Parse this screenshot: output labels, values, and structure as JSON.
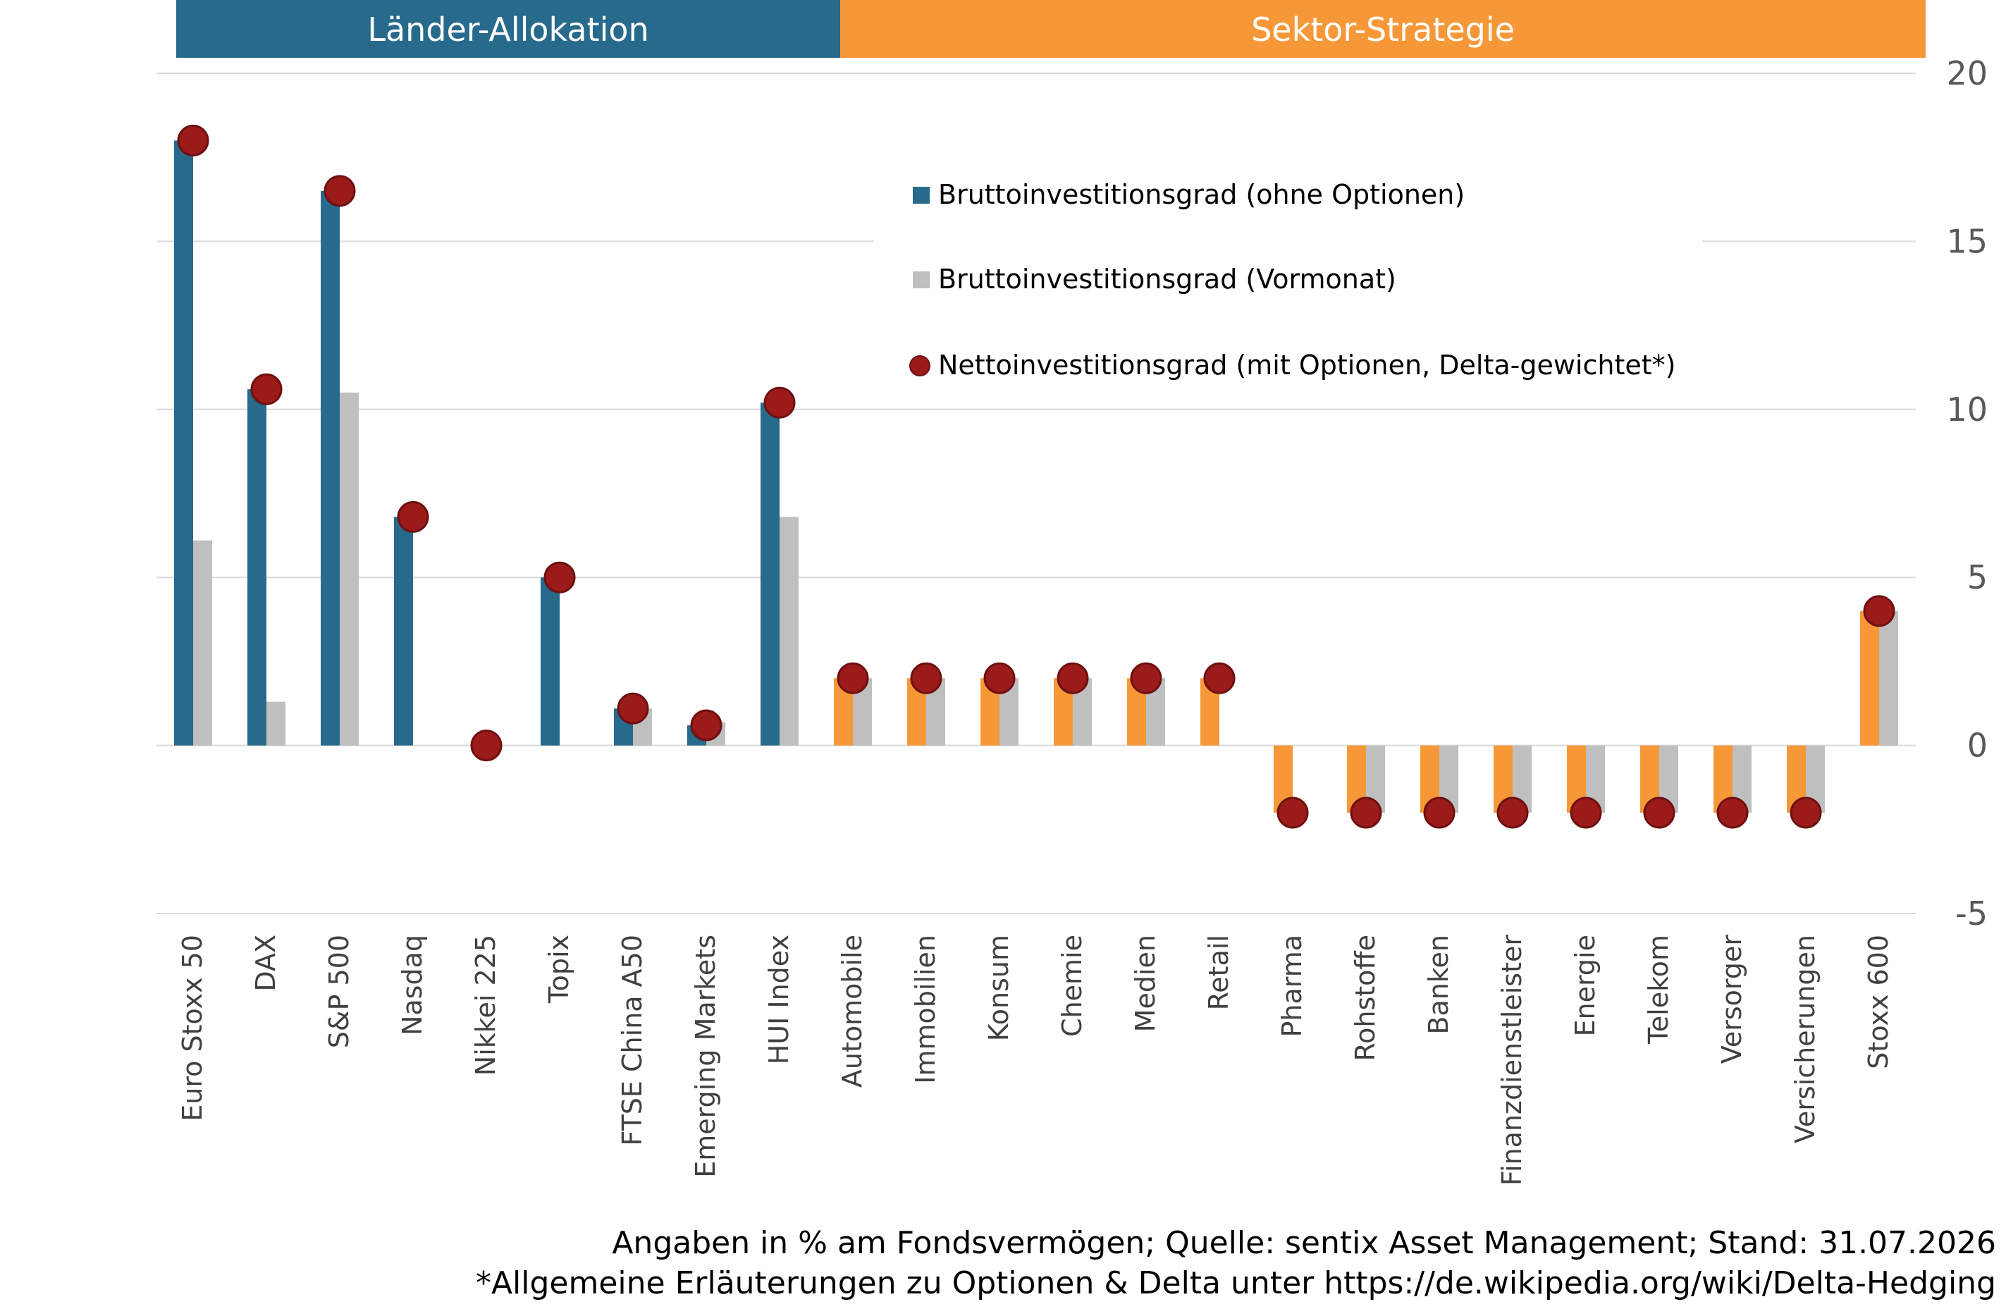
{
  "banners": {
    "left_label": "Länder-Allokation",
    "right_label": "Sektor-Strategie",
    "left_color": "#276a8c",
    "right_color": "#f79838"
  },
  "chart_data": {
    "type": "bar",
    "categories": [
      "Euro Stoxx 50",
      "DAX",
      "S&P 500",
      "Nasdaq",
      "Nikkei 225",
      "Topix",
      "FTSE China A50",
      "Emerging Markets",
      "HUI Index",
      "Automobile",
      "Immobilien",
      "Konsum",
      "Chemie",
      "Medien",
      "Retail",
      "Pharma",
      "Rohstoffe",
      "Banken",
      "Finanzdienstleister",
      "Energie",
      "Telekom",
      "Versorger",
      "Versicherungen",
      "Stoxx 600"
    ],
    "series": [
      {
        "name": "Bruttoinvestitionsgrad (ohne Optionen)",
        "type": "bar",
        "values": [
          18,
          10.6,
          16.5,
          6.8,
          0,
          5,
          1.1,
          0.6,
          10.2,
          2,
          2,
          2,
          2,
          2,
          2,
          -2,
          -2,
          -2,
          -2,
          -2,
          -2,
          -2,
          -2,
          4
        ]
      },
      {
        "name": "Bruttoinvestitionsgrad (Vormonat)",
        "type": "bar",
        "values": [
          6.1,
          1.3,
          10.5,
          0,
          0,
          0,
          1.1,
          0.7,
          6.8,
          2,
          2,
          2,
          2,
          2,
          0,
          0,
          -2,
          -2,
          -2,
          -2,
          -2,
          -2,
          -2,
          4
        ]
      },
      {
        "name": "Nettoinvestitionsgrad (mit Optionen, Delta-gewichtet*)",
        "type": "scatter",
        "values": [
          18,
          10.6,
          16.5,
          6.8,
          0,
          5,
          1.1,
          0.6,
          10.2,
          2,
          2,
          2,
          2,
          2,
          2,
          -2,
          -2,
          -2,
          -2,
          -2,
          -2,
          -2,
          -2,
          4
        ]
      }
    ],
    "group_split_index": 9,
    "ylim": [
      -5,
      20
    ],
    "yticks": [
      "20",
      "15",
      "10",
      "5",
      "0",
      "-5"
    ],
    "y_axis_side": "right",
    "grid": true,
    "legend_position": "top-center",
    "colors": {
      "group1_bar": "#276a8c",
      "group2_bar": "#f79838",
      "prev_month_bar": "#bfbfbf",
      "marker": "#9b1b1b",
      "marker_stroke": "#6e1010",
      "grid": "#d9d9d9"
    }
  },
  "footer": {
    "line1": "Angaben in % am Fondsvermögen; Quelle: sentix Asset Management; Stand: 31.07.2026",
    "line2": "*Allgemeine Erläuterungen zu Optionen & Delta unter https://de.wikipedia.org/wiki/Delta-Hedging"
  }
}
